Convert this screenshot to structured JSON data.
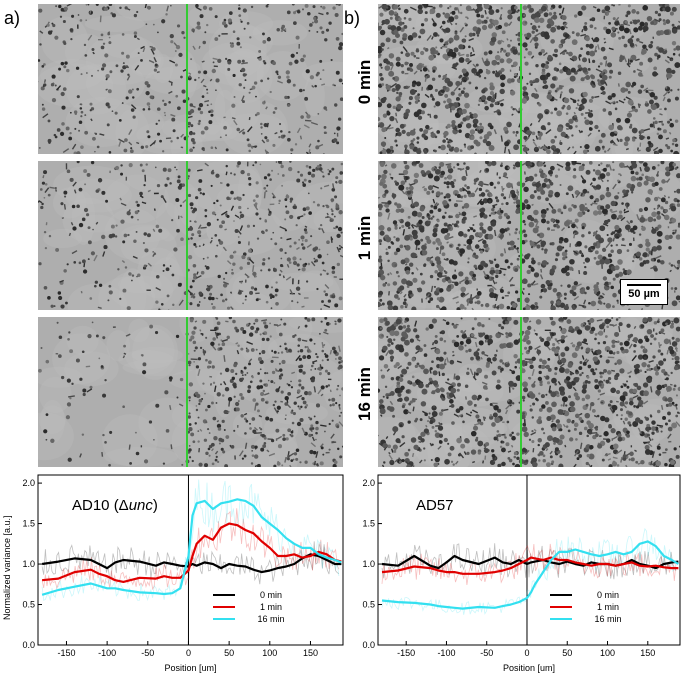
{
  "panels": {
    "a_label": "a)",
    "b_label": "b)"
  },
  "time_labels": [
    "0 min",
    "1 min",
    "16 min"
  ],
  "scale_bar": {
    "label": "50 µm"
  },
  "microscopy_colors": {
    "background": "#aeaeae",
    "boundary_line": "#33cc33"
  },
  "chart_data": [
    {
      "type": "line",
      "annotation_prefix": "AD10 (Δ",
      "annotation_italic": "unc",
      "annotation_suffix": ")",
      "xlabel": "Position [um]",
      "ylabel": "Normalized variance [a.u.]",
      "xlim": [
        -185,
        190
      ],
      "ylim": [
        0,
        2.1
      ],
      "xticks": [
        "-150",
        "-100",
        "-50",
        "0",
        "50",
        "100",
        "150"
      ],
      "yticks": [
        "0.0",
        "0.5",
        "1.0",
        "1.5",
        "2.0"
      ],
      "legend_position": "lower-right",
      "x": [
        -180,
        -160,
        -140,
        -120,
        -110,
        -100,
        -90,
        -80,
        -60,
        -40,
        -30,
        -20,
        -10,
        0,
        5,
        10,
        20,
        30,
        40,
        50,
        60,
        70,
        80,
        90,
        100,
        110,
        120,
        130,
        140,
        150,
        160,
        170,
        180,
        188
      ],
      "series": [
        {
          "name": "0 min",
          "color": "#000000",
          "values": [
            1.0,
            1.03,
            1.07,
            1.05,
            1.0,
            0.95,
            1.02,
            1.05,
            1.03,
            0.98,
            1.02,
            1.0,
            0.98,
            0.97,
            1.0,
            0.98,
            1.02,
            1.0,
            0.95,
            1.0,
            0.98,
            0.97,
            0.93,
            0.9,
            0.92,
            0.95,
            0.97,
            1.0,
            1.07,
            1.12,
            1.1,
            1.05,
            1.0,
            1.0
          ]
        },
        {
          "name": "1 min",
          "color": "#e00000",
          "values": [
            0.8,
            0.82,
            0.9,
            0.93,
            0.88,
            0.85,
            0.8,
            0.78,
            0.83,
            0.82,
            0.85,
            0.83,
            0.83,
            0.92,
            1.1,
            1.25,
            1.35,
            1.3,
            1.45,
            1.5,
            1.48,
            1.42,
            1.38,
            1.28,
            1.2,
            1.1,
            1.1,
            1.12,
            1.08,
            1.1,
            1.15,
            1.12,
            1.05,
            1.03
          ]
        },
        {
          "name": "16 min",
          "color": "#33e0f0",
          "values": [
            0.62,
            0.68,
            0.72,
            0.76,
            0.73,
            0.7,
            0.7,
            0.68,
            0.65,
            0.64,
            0.63,
            0.64,
            0.7,
            1.1,
            1.6,
            1.75,
            1.78,
            1.68,
            1.75,
            1.77,
            1.8,
            1.78,
            1.72,
            1.58,
            1.5,
            1.42,
            1.32,
            1.25,
            1.2,
            1.2,
            1.12,
            1.08,
            1.05,
            1.02
          ]
        }
      ]
    },
    {
      "type": "line",
      "annotation_prefix": "AD57",
      "annotation_italic": "",
      "annotation_suffix": "",
      "xlabel": "Position [um]",
      "ylabel": "",
      "xlim": [
        -185,
        190
      ],
      "ylim": [
        0,
        2.1
      ],
      "xticks": [
        "-150",
        "-100",
        "-50",
        "0",
        "50",
        "100",
        "150"
      ],
      "yticks": [
        "0.0",
        "0.5",
        "1.0",
        "1.5",
        "2.0"
      ],
      "legend_position": "lower-right",
      "x": [
        -180,
        -160,
        -140,
        -120,
        -110,
        -100,
        -90,
        -80,
        -60,
        -40,
        -30,
        -20,
        -10,
        0,
        5,
        10,
        20,
        30,
        40,
        50,
        60,
        70,
        80,
        90,
        100,
        110,
        120,
        130,
        140,
        150,
        160,
        170,
        180,
        188
      ],
      "series": [
        {
          "name": "0 min",
          "color": "#000000",
          "values": [
            1.0,
            0.98,
            1.1,
            0.98,
            0.95,
            1.02,
            1.1,
            1.05,
            1.0,
            1.08,
            1.02,
            1.0,
            1.05,
            1.0,
            1.02,
            1.03,
            1.05,
            1.02,
            1.0,
            1.03,
            1.0,
            0.98,
            1.02,
            1.0,
            1.0,
            0.98,
            1.0,
            1.05,
            1.0,
            0.98,
            0.95,
            1.0,
            1.02,
            1.03
          ]
        },
        {
          "name": "1 min",
          "color": "#e00000",
          "values": [
            0.9,
            0.92,
            0.97,
            0.95,
            0.92,
            0.9,
            0.9,
            0.88,
            0.88,
            0.9,
            0.92,
            0.95,
            1.0,
            1.05,
            1.08,
            1.07,
            1.05,
            1.08,
            1.05,
            1.05,
            1.02,
            1.0,
            0.98,
            1.0,
            1.0,
            0.98,
            1.0,
            1.02,
            0.98,
            0.97,
            0.98,
            0.96,
            0.95,
            0.95
          ]
        },
        {
          "name": "16 min",
          "color": "#33e0f0",
          "values": [
            0.55,
            0.53,
            0.52,
            0.5,
            0.48,
            0.47,
            0.46,
            0.45,
            0.47,
            0.46,
            0.48,
            0.5,
            0.53,
            0.58,
            0.65,
            0.75,
            0.9,
            1.05,
            1.15,
            1.15,
            1.18,
            1.15,
            1.12,
            1.1,
            1.12,
            1.15,
            1.12,
            1.15,
            1.25,
            1.28,
            1.22,
            1.1,
            1.05,
            1.0
          ]
        }
      ]
    }
  ]
}
